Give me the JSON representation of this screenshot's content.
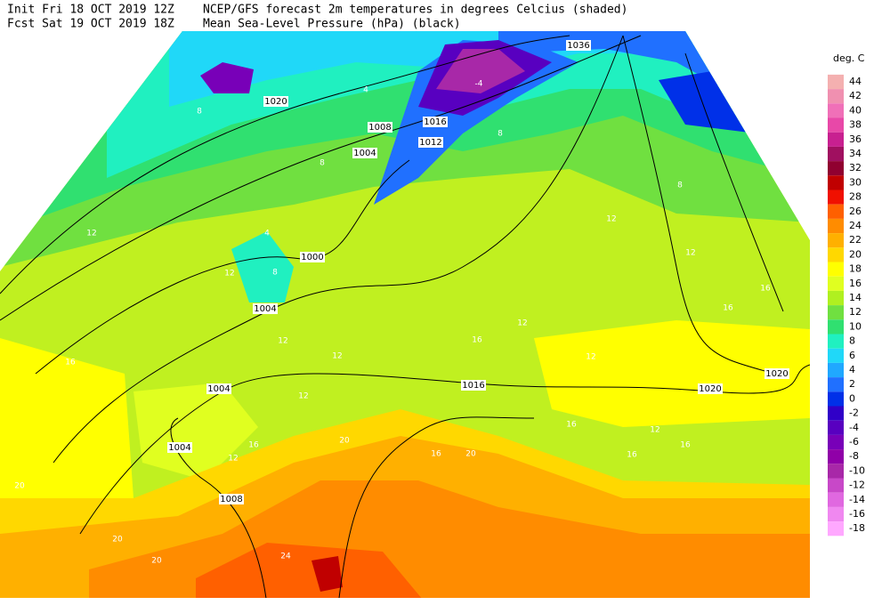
{
  "header": {
    "init": "Init  Fri 18 OCT 2019 12Z",
    "fcst": "Fcst Sat 19 OCT 2019 18Z",
    "title": "NCEP/GFS forecast 2m temperatures in degrees Celcius (shaded)",
    "subtitle": "Mean Sea-Level Pressure (hPa) (black)"
  },
  "colorbar": {
    "unit": "deg. C",
    "levels": [
      {
        "value": 44,
        "color": "#f4b0b0"
      },
      {
        "value": 42,
        "color": "#f090b0"
      },
      {
        "value": 40,
        "color": "#f070b8"
      },
      {
        "value": 38,
        "color": "#e848a8"
      },
      {
        "value": 36,
        "color": "#c82090"
      },
      {
        "value": 34,
        "color": "#a01060"
      },
      {
        "value": 32,
        "color": "#900030"
      },
      {
        "value": 30,
        "color": "#c00000"
      },
      {
        "value": 28,
        "color": "#f01000"
      },
      {
        "value": 26,
        "color": "#ff6000"
      },
      {
        "value": 24,
        "color": "#ff8c00"
      },
      {
        "value": 22,
        "color": "#ffb000"
      },
      {
        "value": 20,
        "color": "#ffd800"
      },
      {
        "value": 18,
        "color": "#ffff00"
      },
      {
        "value": 16,
        "color": "#e0ff20"
      },
      {
        "value": 14,
        "color": "#b0f020"
      },
      {
        "value": 12,
        "color": "#70e040"
      },
      {
        "value": 10,
        "color": "#30e070"
      },
      {
        "value": 8,
        "color": "#20f0c0"
      },
      {
        "value": 6,
        "color": "#20d8f8"
      },
      {
        "value": 4,
        "color": "#20a8ff"
      },
      {
        "value": 2,
        "color": "#2070ff"
      },
      {
        "value": 0,
        "color": "#0030e8"
      },
      {
        "value": -2,
        "color": "#3000c8"
      },
      {
        "value": -4,
        "color": "#5800c0"
      },
      {
        "value": -6,
        "color": "#7800b8"
      },
      {
        "value": -8,
        "color": "#9000a8"
      },
      {
        "value": -10,
        "color": "#a828a8"
      },
      {
        "value": -12,
        "color": "#c848c8"
      },
      {
        "value": -14,
        "color": "#e068e0"
      },
      {
        "value": -16,
        "color": "#f088f0"
      },
      {
        "value": -18,
        "color": "#ffa8ff"
      }
    ]
  },
  "isobar_labels": [
    1020,
    1008,
    1016,
    1012,
    1036,
    1004,
    1000,
    1004,
    1004,
    1004,
    1008,
    1016,
    1020,
    1020
  ],
  "temperature_labels": [
    4,
    8,
    8,
    12,
    8,
    12,
    12,
    12,
    16,
    12,
    16,
    12,
    20,
    20,
    16,
    20,
    20,
    20,
    24,
    12,
    12,
    16,
    16,
    12,
    16,
    12,
    16,
    12,
    16,
    16,
    8,
    8,
    -4,
    4
  ]
}
